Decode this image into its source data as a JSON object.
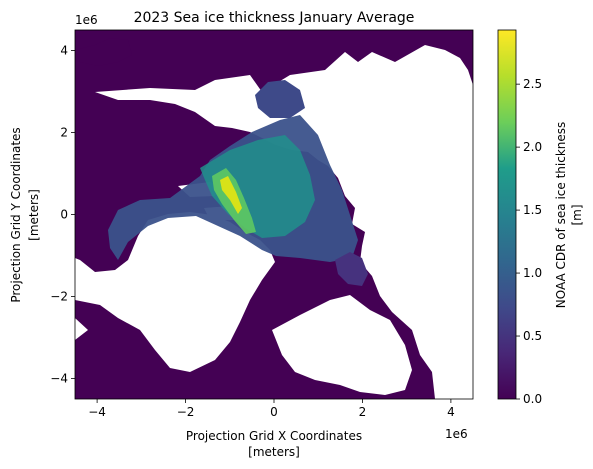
{
  "chart_data": {
    "type": "heatmap",
    "title": "2023 Sea ice thickness January Average",
    "xlabel_line1": "Projection Grid X Coordinates",
    "xlabel_line2": "[meters]",
    "ylabel_line1": "Projection Grid Y Coordinates",
    "ylabel_line2": "[meters]",
    "x_offset_label": "1e6",
    "y_offset_label": "1e6",
    "xlim": [
      -4.5,
      4.5
    ],
    "ylim": [
      -4.5,
      4.5
    ],
    "xticks": [
      -4,
      -2,
      0,
      2,
      4
    ],
    "yticks": [
      -4,
      -2,
      0,
      2,
      4
    ],
    "xtick_labels": [
      "−4",
      "−2",
      "0",
      "2",
      "4"
    ],
    "ytick_labels": [
      "−4",
      "−2",
      "0",
      "2",
      "4"
    ],
    "colorbar": {
      "label_line1": "NOAA CDR of sea ice thickness",
      "label_line2": "[m]",
      "range": [
        0,
        2.93
      ],
      "ticks": [
        0,
        0.5,
        1.0,
        1.5,
        2.0,
        2.5
      ],
      "tick_labels": [
        "0.0",
        "0.5",
        "1.0",
        "1.5",
        "2.0",
        "2.5"
      ],
      "colormap": "viridis",
      "colors": [
        "#440154",
        "#482777",
        "#3f4a8a",
        "#31678e",
        "#26838f",
        "#1f9d8a",
        "#6cce5a",
        "#b6de2b",
        "#fee825"
      ]
    },
    "background_value": 0.0,
    "no_data_color": "#ffffff"
  }
}
